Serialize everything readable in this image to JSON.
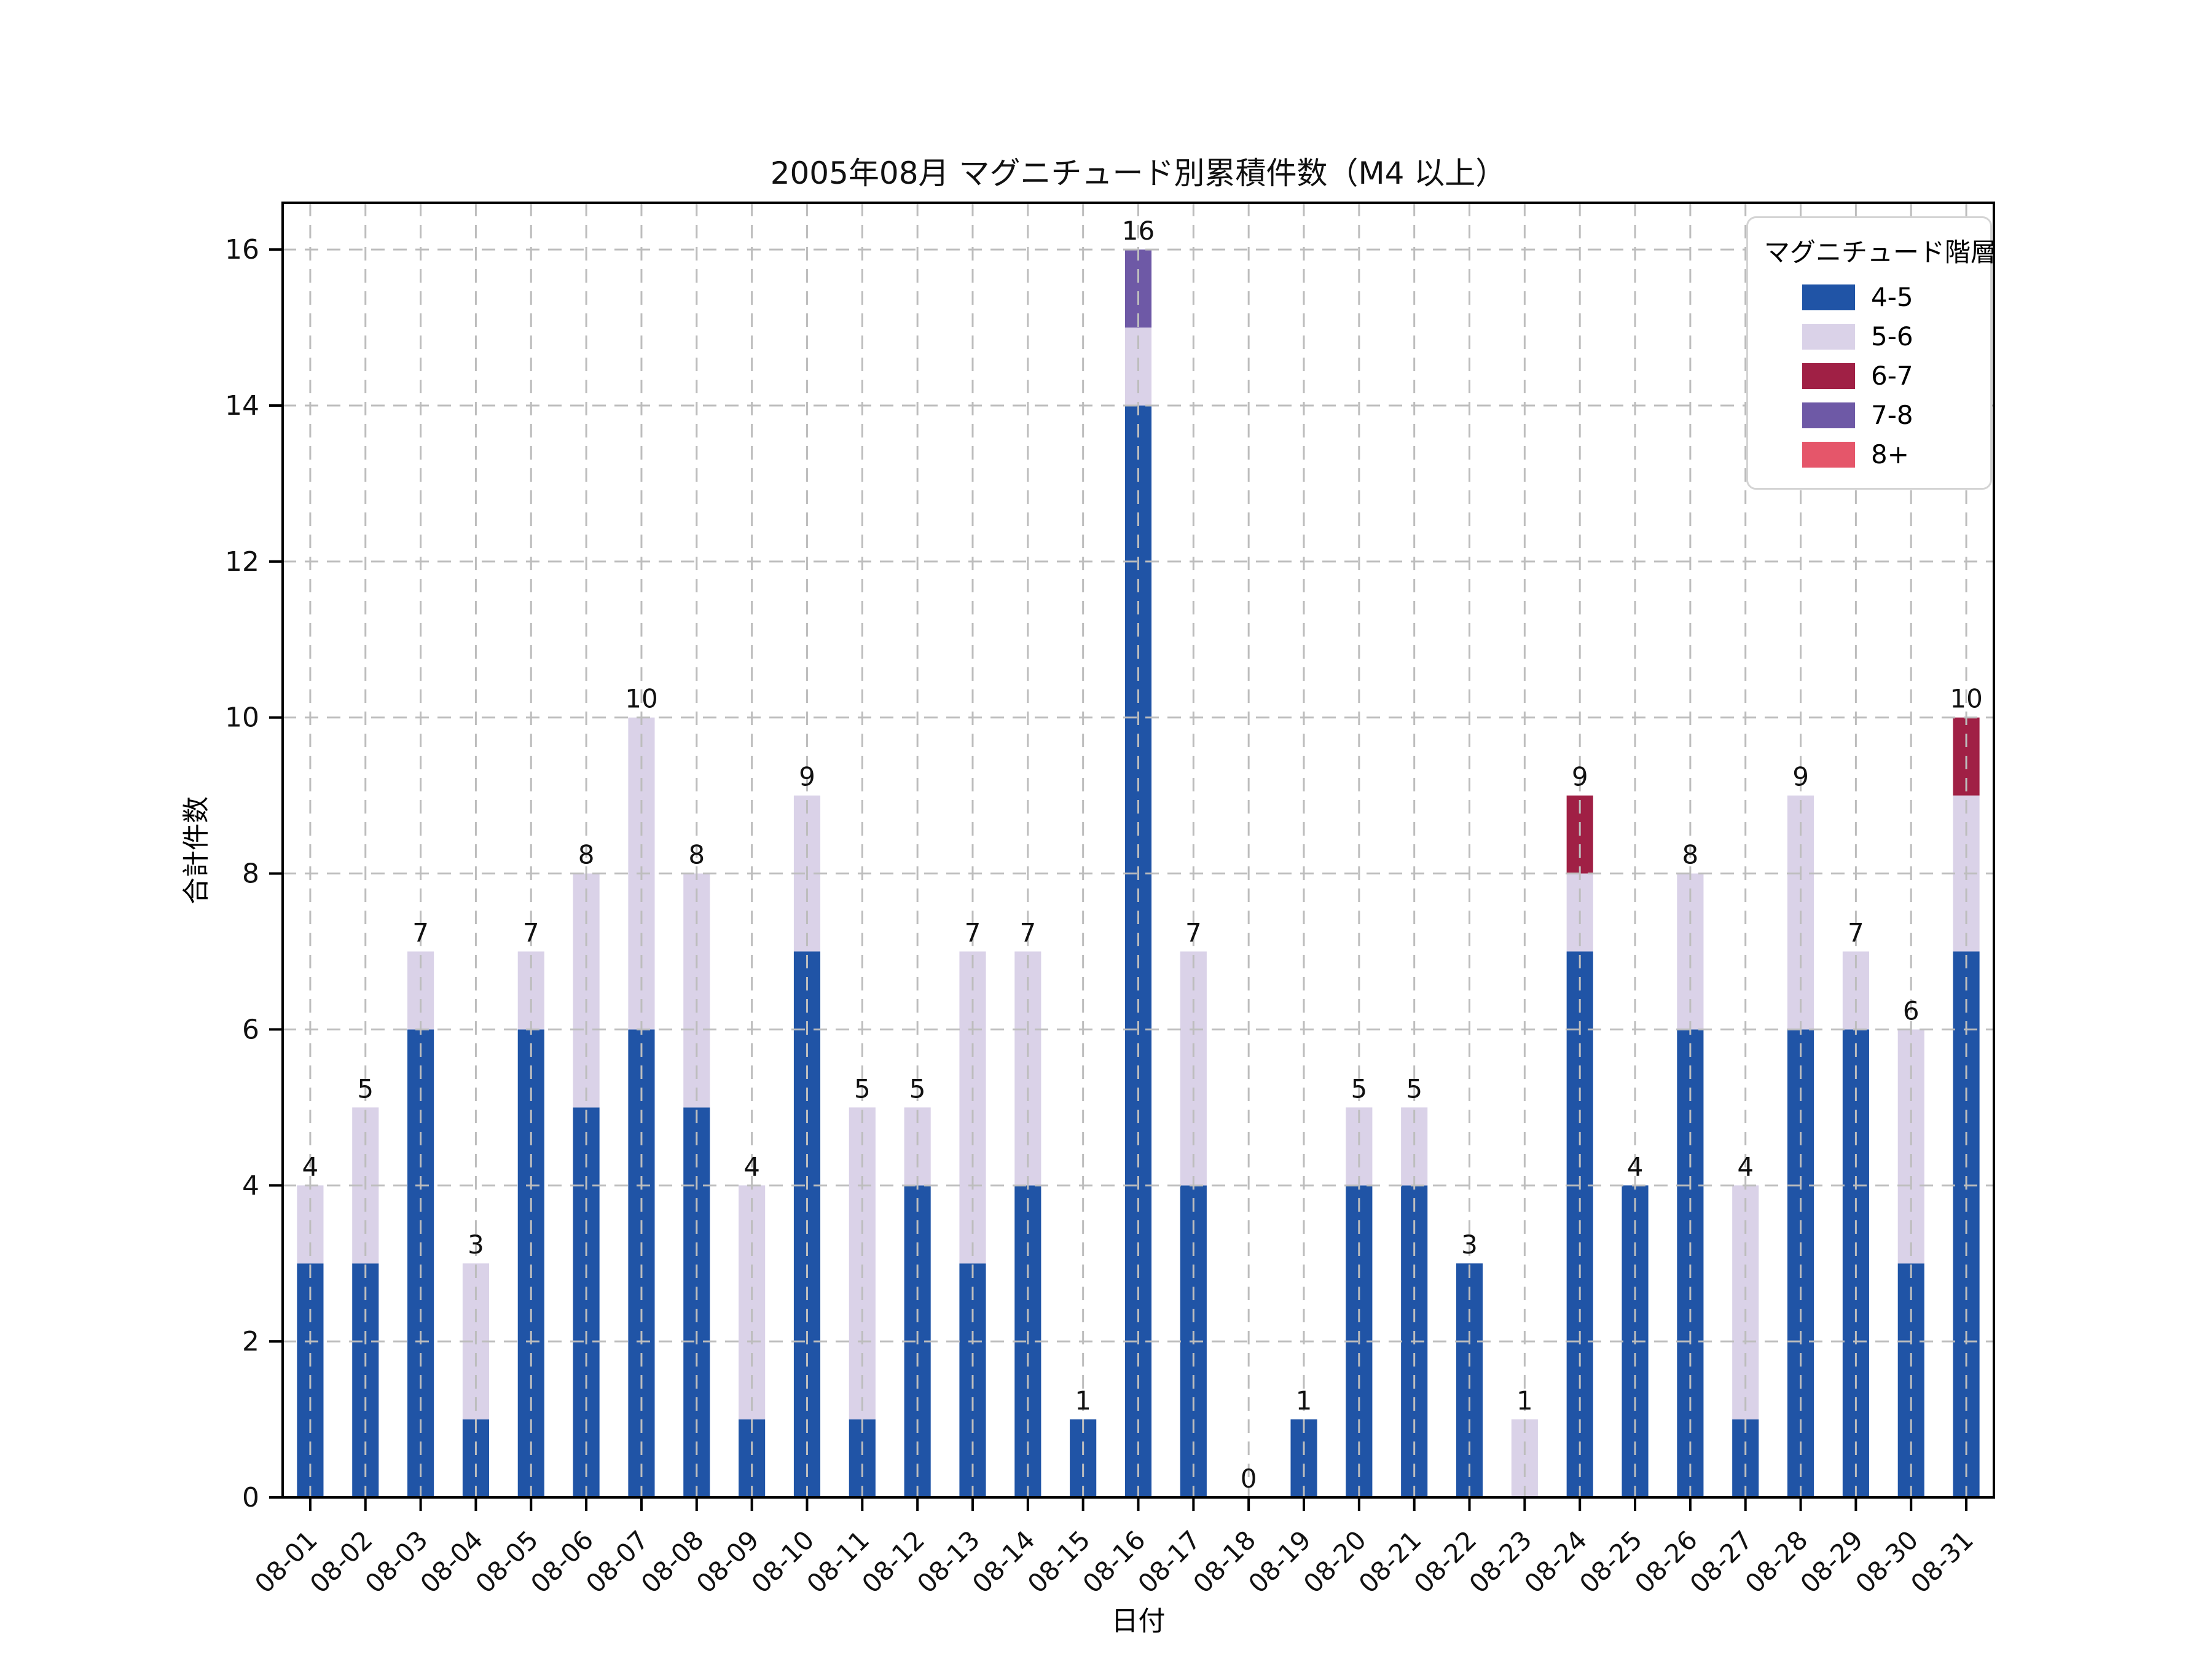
{
  "title": "2005年08月 マグニチュード別累積件数（M4 以上）",
  "axes": {
    "x_label": "日付",
    "y_label": "合計件数"
  },
  "legend": {
    "title": "マグニチュード階層"
  },
  "colors": {
    "grid": "#bdbdbd",
    "spine": "#000000",
    "text": "#111111"
  },
  "chart_data": {
    "type": "bar",
    "stacked": true,
    "title": "2005年08月 マグニチュード別累積件数（M4 以上）",
    "xlabel": "日付",
    "ylabel": "合計件数",
    "ylim": [
      0,
      16.6
    ],
    "yticks": [
      0,
      2,
      4,
      6,
      8,
      10,
      12,
      14,
      16
    ],
    "grid": true,
    "legend_position": "upper right",
    "categories": [
      "08-01",
      "08-02",
      "08-03",
      "08-04",
      "08-05",
      "08-06",
      "08-07",
      "08-08",
      "08-09",
      "08-10",
      "08-11",
      "08-12",
      "08-13",
      "08-14",
      "08-15",
      "08-16",
      "08-17",
      "08-18",
      "08-19",
      "08-20",
      "08-21",
      "08-22",
      "08-23",
      "08-24",
      "08-25",
      "08-26",
      "08-27",
      "08-28",
      "08-29",
      "08-30",
      "08-31"
    ],
    "series": [
      {
        "name": "4-5",
        "color": "#2054a6",
        "values": [
          3,
          3,
          6,
          1,
          6,
          5,
          6,
          5,
          1,
          7,
          1,
          4,
          3,
          4,
          1,
          14,
          4,
          0,
          1,
          4,
          4,
          3,
          0,
          7,
          4,
          6,
          1,
          6,
          6,
          3,
          7
        ]
      },
      {
        "name": "5-6",
        "color": "#dad2e8",
        "values": [
          1,
          2,
          1,
          2,
          1,
          3,
          4,
          3,
          3,
          2,
          4,
          1,
          4,
          3,
          0,
          1,
          3,
          0,
          0,
          1,
          1,
          0,
          1,
          1,
          0,
          2,
          3,
          3,
          1,
          3,
          2
        ]
      },
      {
        "name": "6-7",
        "color": "#a02045",
        "values": [
          0,
          0,
          0,
          0,
          0,
          0,
          0,
          0,
          0,
          0,
          0,
          0,
          0,
          0,
          0,
          0,
          0,
          0,
          0,
          0,
          0,
          0,
          0,
          1,
          0,
          0,
          0,
          0,
          0,
          0,
          1
        ]
      },
      {
        "name": "7-8",
        "color": "#6e59a6",
        "values": [
          0,
          0,
          0,
          0,
          0,
          0,
          0,
          0,
          0,
          0,
          0,
          0,
          0,
          0,
          0,
          1,
          0,
          0,
          0,
          0,
          0,
          0,
          0,
          0,
          0,
          0,
          0,
          0,
          0,
          0,
          0
        ]
      },
      {
        "name": "8+",
        "color": "#e5566a",
        "values": [
          0,
          0,
          0,
          0,
          0,
          0,
          0,
          0,
          0,
          0,
          0,
          0,
          0,
          0,
          0,
          0,
          0,
          0,
          0,
          0,
          0,
          0,
          0,
          0,
          0,
          0,
          0,
          0,
          0,
          0,
          0
        ]
      }
    ],
    "totals": [
      4,
      5,
      7,
      3,
      7,
      8,
      10,
      8,
      4,
      9,
      5,
      5,
      7,
      7,
      1,
      16,
      7,
      0,
      1,
      5,
      5,
      3,
      1,
      9,
      4,
      8,
      4,
      9,
      7,
      6,
      10
    ]
  }
}
